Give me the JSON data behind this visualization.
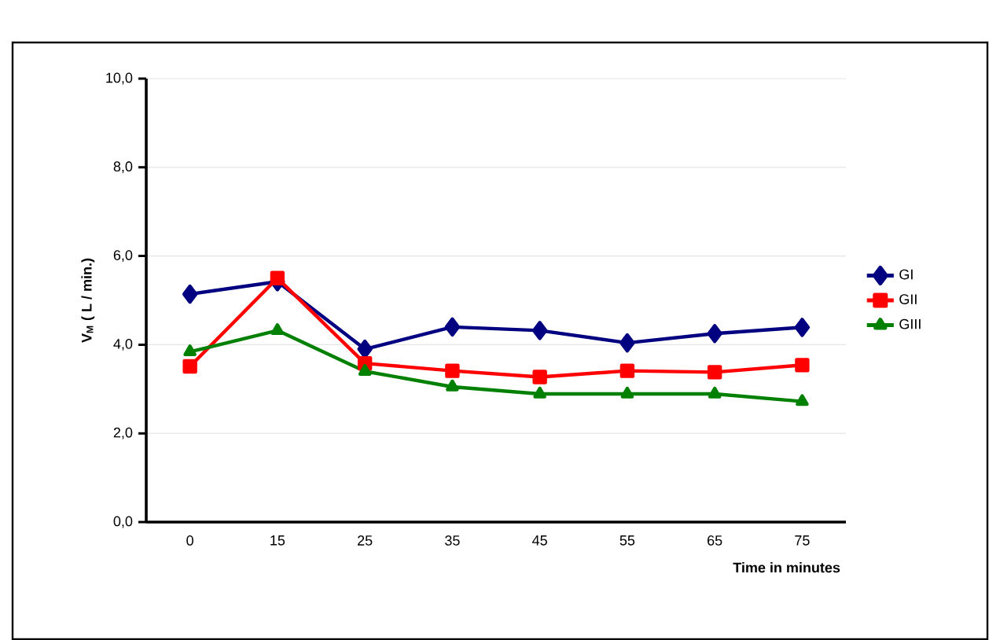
{
  "chart_data": {
    "type": "line",
    "xlabel": "Time in minutes",
    "ylabel": "V$_{M}$ ( L / min.)",
    "categories": [
      "0",
      "15",
      "25",
      "35",
      "45",
      "55",
      "65",
      "75"
    ],
    "series": [
      {
        "name": "GI",
        "color": "#000080",
        "marker": "diamond",
        "values": [
          5.14,
          5.42,
          3.9,
          4.4,
          4.32,
          4.04,
          4.25,
          4.39
        ]
      },
      {
        "name": "GII",
        "color": "#ff0000",
        "marker": "square",
        "values": [
          3.51,
          5.5,
          3.58,
          3.41,
          3.27,
          3.41,
          3.38,
          3.54
        ]
      },
      {
        "name": "GIII",
        "color": "#008000",
        "marker": "triangle",
        "values": [
          3.84,
          4.32,
          3.4,
          3.05,
          2.89,
          2.89,
          2.89,
          2.72
        ]
      }
    ],
    "ylim": [
      0,
      10
    ],
    "yticks": [
      {
        "value": 0,
        "label": "0,0"
      },
      {
        "value": 2,
        "label": "2,0"
      },
      {
        "value": 4,
        "label": "4,0"
      },
      {
        "value": 6,
        "label": "6,0"
      },
      {
        "value": 8,
        "label": "8,0"
      },
      {
        "value": 10,
        "label": "10,0"
      }
    ],
    "grid": "y",
    "legend": "right",
    "line_style": "solid"
  }
}
